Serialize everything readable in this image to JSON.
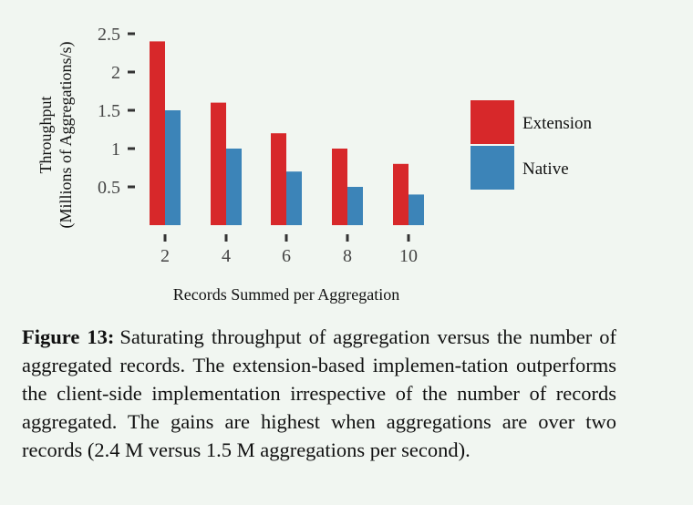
{
  "chart_data": {
    "type": "bar",
    "categories": [
      "2",
      "4",
      "6",
      "8",
      "10"
    ],
    "series": [
      {
        "name": "Extension",
        "values": [
          2.4,
          1.6,
          1.2,
          1.0,
          0.8
        ],
        "color": "#d7282a"
      },
      {
        "name": "Native",
        "values": [
          1.5,
          1.0,
          0.7,
          0.5,
          0.4
        ],
        "color": "#3c84b8"
      }
    ],
    "xlabel": "Records Summed per Aggregation",
    "ylabel_line1": "Throughput",
    "ylabel_line2": "(Millions of Aggregations/s)",
    "yticks": [
      "0.5",
      "1",
      "1.5",
      "2",
      "2.5"
    ],
    "ytick_values": [
      0.5,
      1,
      1.5,
      2,
      2.5
    ],
    "ylim": [
      0,
      2.5
    ],
    "legend_position": "right",
    "grid": false
  },
  "caption": {
    "label": "Figure 13:",
    "text": "Saturating throughput of aggregation versus the number of aggregated records. The extension-based implemen-tation outperforms the client-side implementation irrespective of the number of records aggregated.  The gains are highest when aggregations are over two records (2.4 M versus 1.5 M aggregations per second)."
  }
}
